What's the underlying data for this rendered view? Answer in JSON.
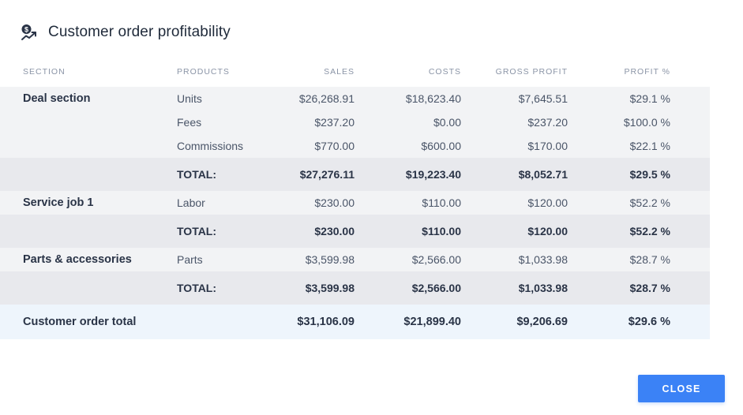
{
  "dialog": {
    "title": "Customer order profitability",
    "title_icon": "profit-chart-icon",
    "close_label": "CLOSE",
    "accent_color": "#3b82f6"
  },
  "columns": {
    "section": "SECTION",
    "products": "PRODUCTS",
    "sales": "SALES",
    "costs": "COSTS",
    "gross_profit": "GROSS PROFIT",
    "profit_pct": "PROFIT %"
  },
  "sections": [
    {
      "name": "Deal section",
      "items": [
        {
          "product": "Units",
          "sales": "$26,268.91",
          "costs": "$18,623.40",
          "gross_profit": "$7,645.51",
          "profit_pct": "$29.1 %"
        },
        {
          "product": "Fees",
          "sales": "$237.20",
          "costs": "$0.00",
          "gross_profit": "$237.20",
          "profit_pct": "$100.0 %"
        },
        {
          "product": "Commissions",
          "sales": "$770.00",
          "costs": "$600.00",
          "gross_profit": "$170.00",
          "profit_pct": "$22.1 %"
        }
      ],
      "total": {
        "label": "TOTAL:",
        "sales": "$27,276.11",
        "costs": "$19,223.40",
        "gross_profit": "$8,052.71",
        "profit_pct": "$29.5 %"
      }
    },
    {
      "name": "Service job 1",
      "items": [
        {
          "product": "Labor",
          "sales": "$230.00",
          "costs": "$110.00",
          "gross_profit": "$120.00",
          "profit_pct": "$52.2 %"
        }
      ],
      "total": {
        "label": "TOTAL:",
        "sales": "$230.00",
        "costs": "$110.00",
        "gross_profit": "$120.00",
        "profit_pct": "$52.2 %"
      }
    },
    {
      "name": "Parts & accessories",
      "items": [
        {
          "product": "Parts",
          "sales": "$3,599.98",
          "costs": "$2,566.00",
          "gross_profit": "$1,033.98",
          "profit_pct": "$28.7 %"
        }
      ],
      "total": {
        "label": "TOTAL:",
        "sales": "$3,599.98",
        "costs": "$2,566.00",
        "gross_profit": "$1,033.98",
        "profit_pct": "$28.7 %"
      }
    }
  ],
  "grand_total": {
    "label": "Customer order total",
    "sales": "$31,106.09",
    "costs": "$21,899.40",
    "gross_profit": "$9,206.69",
    "profit_pct": "$29.6 %"
  }
}
